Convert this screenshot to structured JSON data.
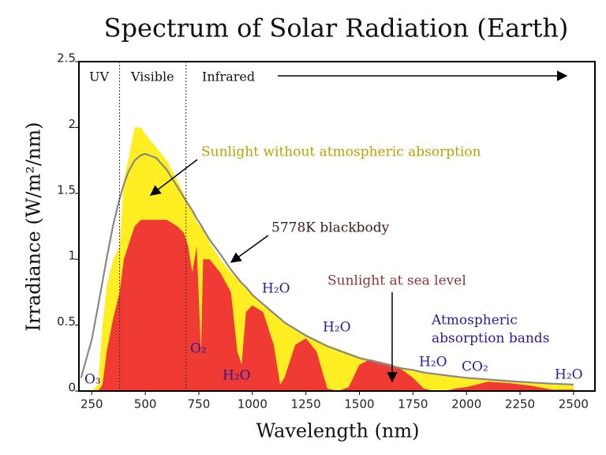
{
  "chart_data": {
    "type": "area",
    "title": "Spectrum of Solar Radiation (Earth)",
    "xlabel": "Wavelength (nm)",
    "ylabel": "Irradiance (W/m²/nm)",
    "x": [
      200,
      250,
      280,
      300,
      320,
      350,
      380,
      400,
      420,
      450,
      480,
      500,
      550,
      600,
      650,
      680,
      700,
      720,
      740,
      760,
      770,
      800,
      850,
      900,
      930,
      950,
      970,
      1000,
      1050,
      1100,
      1130,
      1150,
      1200,
      1250,
      1300,
      1350,
      1400,
      1450,
      1500,
      1550,
      1600,
      1650,
      1700,
      1750,
      1800,
      1850,
      1900,
      1950,
      2000,
      2050,
      2100,
      2200,
      2300,
      2400,
      2500
    ],
    "series": [
      {
        "name": "Sunlight without atmospheric absorption",
        "type": "area",
        "color": "#ffee22",
        "values": [
          0,
          0,
          0.05,
          0.5,
          0.8,
          1.0,
          1.1,
          1.6,
          1.75,
          2.0,
          2.0,
          1.95,
          1.85,
          1.75,
          1.6,
          1.5,
          1.42,
          1.38,
          1.28,
          1.25,
          1.23,
          1.13,
          1.0,
          0.9,
          0.85,
          0.82,
          0.78,
          0.73,
          0.67,
          0.6,
          0.56,
          0.53,
          0.48,
          0.43,
          0.39,
          0.35,
          0.32,
          0.29,
          0.26,
          0.24,
          0.22,
          0.2,
          0.18,
          0.16,
          0.15,
          0.13,
          0.12,
          0.11,
          0.1,
          0.09,
          0.085,
          0.075,
          0.065,
          0.055,
          0.05
        ]
      },
      {
        "name": "Sunlight at sea level",
        "type": "area",
        "color": "#ef3b33",
        "values": [
          0,
          0,
          0,
          0.05,
          0.3,
          0.55,
          0.75,
          1.0,
          1.1,
          1.25,
          1.3,
          1.3,
          1.3,
          1.3,
          1.25,
          1.2,
          1.1,
          0.9,
          1.1,
          0.3,
          1.0,
          1.0,
          0.9,
          0.75,
          0.3,
          0.2,
          0.6,
          0.65,
          0.6,
          0.35,
          0.05,
          0.1,
          0.35,
          0.4,
          0.3,
          0.02,
          0,
          0.03,
          0.2,
          0.24,
          0.22,
          0.2,
          0.16,
          0.1,
          0.02,
          0,
          0,
          0.02,
          0.03,
          0.05,
          0.07,
          0.06,
          0.04,
          0.01,
          0.01
        ]
      },
      {
        "name": "5778K blackbody",
        "type": "line",
        "color": "#888888",
        "values": [
          0.1,
          0.39,
          0.65,
          0.83,
          1.01,
          1.26,
          1.46,
          1.57,
          1.66,
          1.75,
          1.79,
          1.8,
          1.77,
          1.68,
          1.55,
          1.47,
          1.42,
          1.37,
          1.31,
          1.26,
          1.23,
          1.15,
          1.04,
          0.92,
          0.86,
          0.82,
          0.79,
          0.73,
          0.66,
          0.59,
          0.55,
          0.52,
          0.47,
          0.42,
          0.38,
          0.34,
          0.31,
          0.28,
          0.25,
          0.23,
          0.21,
          0.19,
          0.17,
          0.16,
          0.14,
          0.13,
          0.12,
          0.11,
          0.1,
          0.094,
          0.088,
          0.075,
          0.065,
          0.056,
          0.049
        ]
      }
    ],
    "xlim": [
      190,
      2600
    ],
    "ylim": [
      0,
      2.5
    ],
    "xticks": [
      250,
      500,
      750,
      1000,
      1250,
      1500,
      1750,
      2000,
      2250,
      2500
    ],
    "yticks": [
      0,
      0.5,
      1,
      1.5,
      2,
      2.5
    ],
    "regions": [
      "UV",
      "Visible",
      "Infrared"
    ],
    "region_edges": [
      380,
      690
    ],
    "absorption_label": [
      "Atmospheric",
      "absorption bands"
    ],
    "absorbers": [
      "O₃",
      "O₂",
      "H₂O",
      "H₂O",
      "H₂O",
      "H₂O",
      "CO₂",
      "H₂O"
    ]
  }
}
